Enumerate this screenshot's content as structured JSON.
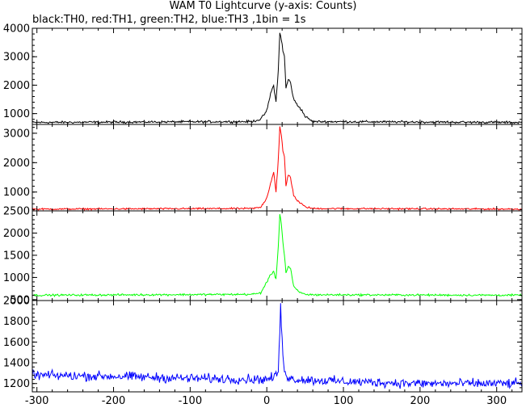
{
  "title": "WAM T0 Lightcurve (y-axis: Counts)",
  "subtitle": "black:TH0, red:TH1, green:TH2, blue:TH3 ,1bin = 1s",
  "chart_data": [
    {
      "type": "line",
      "name": "TH0",
      "color": "#000000",
      "xlim": [
        -306,
        333
      ],
      "ylim": [
        620,
        4000
      ],
      "yticks": [
        1000,
        2000,
        3000,
        4000
      ],
      "baseline": 690,
      "noise": 40,
      "x": [
        -306,
        -20,
        -8,
        0,
        5,
        9,
        12,
        15,
        17,
        19,
        21,
        23,
        25,
        28,
        31,
        35,
        40,
        45,
        50,
        60,
        333
      ],
      "values": [
        690,
        720,
        800,
        1100,
        1700,
        2000,
        1400,
        2500,
        3900,
        3600,
        3200,
        3000,
        1900,
        2200,
        2100,
        1500,
        1300,
        1150,
        900,
        720,
        690
      ]
    },
    {
      "type": "line",
      "name": "TH1",
      "color": "#ff0000",
      "xlim": [
        -306,
        333
      ],
      "ylim": [
        360,
        3300
      ],
      "yticks": [
        1000,
        2000,
        3000
      ],
      "baseline": 420,
      "noise": 28,
      "x": [
        -306,
        -20,
        -8,
        0,
        5,
        9,
        12,
        15,
        17,
        19,
        21,
        23,
        25,
        28,
        31,
        35,
        40,
        45,
        50,
        60,
        333
      ],
      "values": [
        420,
        440,
        480,
        800,
        1300,
        1700,
        1000,
        2100,
        3200,
        2900,
        2400,
        2200,
        1200,
        1600,
        1500,
        900,
        700,
        600,
        500,
        440,
        420
      ]
    },
    {
      "type": "line",
      "name": "TH2",
      "color": "#00ff00",
      "xlim": [
        -306,
        333
      ],
      "ylim": [
        480,
        2500
      ],
      "yticks": [
        500,
        1000,
        1500,
        2000,
        2500
      ],
      "baseline": 600,
      "noise": 22,
      "x": [
        -306,
        -20,
        -8,
        0,
        5,
        9,
        12,
        15,
        17,
        19,
        21,
        23,
        25,
        28,
        31,
        35,
        40,
        45,
        50,
        60,
        333
      ],
      "values": [
        600,
        620,
        650,
        900,
        1050,
        1150,
        950,
        1700,
        2450,
        2200,
        1800,
        1500,
        1100,
        1250,
        1200,
        800,
        700,
        650,
        620,
        610,
        600
      ]
    },
    {
      "type": "line",
      "name": "TH3",
      "color": "#0000ff",
      "xlim": [
        -306,
        333
      ],
      "ylim": [
        1120,
        2000
      ],
      "yticks": [
        1200,
        1400,
        1600,
        1800,
        2000
      ],
      "baseline": 1240,
      "noise": 45,
      "x": [
        -306,
        -200,
        -100,
        0,
        10,
        15,
        17,
        18,
        19,
        21,
        23,
        28,
        40,
        100,
        200,
        333
      ],
      "values": [
        1280,
        1270,
        1250,
        1240,
        1260,
        1320,
        1700,
        1990,
        1750,
        1450,
        1350,
        1250,
        1240,
        1220,
        1200,
        1200
      ]
    }
  ],
  "x_axis": {
    "ticks": [
      -300,
      -200,
      -100,
      0,
      100,
      200,
      300
    ]
  }
}
